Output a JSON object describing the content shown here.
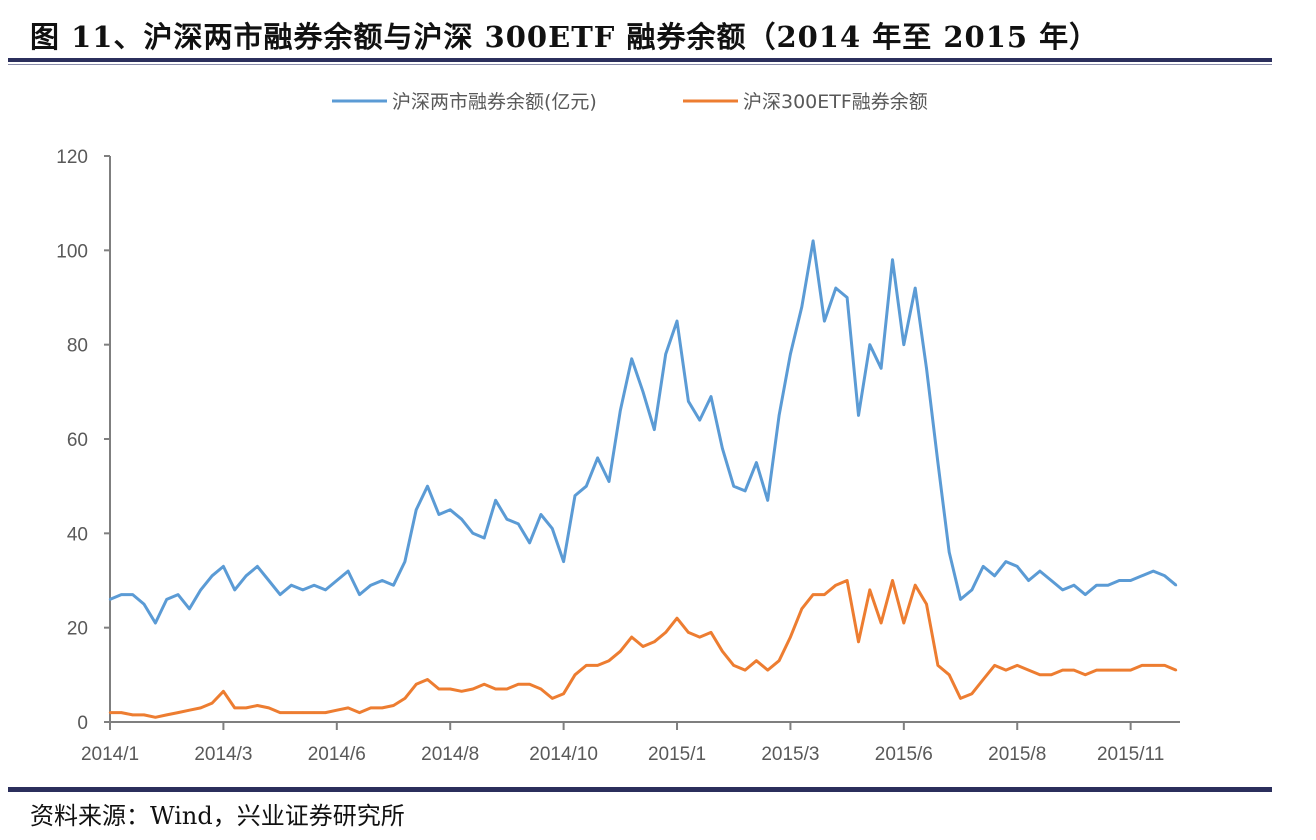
{
  "title": "图 11、沪深两市融券余额与沪深 300ETF 融券余额（2014 年至 2015 年）",
  "source": "资料来源：Wind，兴业证券研究所",
  "chart_data": {
    "type": "line",
    "title": "图 11、沪深两市融券余额与沪深 300ETF 融券余额（2014 年至 2015 年）",
    "xlabel": "",
    "ylabel": "",
    "ylim": [
      0,
      120
    ],
    "yticks": [
      "0",
      "20",
      "40",
      "60",
      "80",
      "100",
      "120"
    ],
    "grid": false,
    "legend_position": "top",
    "categories": [
      "2014/1",
      "",
      "",
      "",
      "",
      "",
      "",
      "",
      "",
      "",
      "2014/3",
      "",
      "",
      "",
      "",
      "",
      "",
      "",
      "",
      "",
      "2014/6",
      "",
      "",
      "",
      "",
      "",
      "",
      "",
      "",
      "",
      "2014/8",
      "",
      "",
      "",
      "",
      "",
      "",
      "",
      "",
      "",
      "2014/10",
      "",
      "",
      "",
      "",
      "",
      "",
      "",
      "",
      "",
      "2015/1",
      "",
      "",
      "",
      "",
      "",
      "",
      "",
      "",
      "",
      "2015/3",
      "",
      "",
      "",
      "",
      "",
      "",
      "",
      "",
      "",
      "2015/6",
      "",
      "",
      "",
      "",
      "",
      "",
      "",
      "",
      "",
      "2015/8",
      "",
      "",
      "",
      "",
      "",
      "",
      "",
      "",
      "",
      "2015/11",
      "",
      "",
      "",
      ""
    ],
    "series": [
      {
        "name": "沪深两市融券余额(亿元)",
        "color": "#5b9bd5",
        "values": [
          26,
          27,
          27,
          25,
          21,
          26,
          27,
          24,
          28,
          31,
          33,
          28,
          31,
          33,
          30,
          27,
          29,
          28,
          29,
          28,
          30,
          32,
          27,
          29,
          30,
          29,
          34,
          45,
          50,
          44,
          45,
          43,
          40,
          39,
          47,
          43,
          42,
          38,
          44,
          41,
          34,
          48,
          50,
          56,
          51,
          66,
          77,
          70,
          62,
          78,
          85,
          68,
          64,
          69,
          58,
          50,
          49,
          55,
          47,
          65,
          78,
          88,
          102,
          85,
          92,
          90,
          65,
          80,
          75,
          98,
          80,
          92,
          75,
          55,
          36,
          26,
          28,
          33,
          31,
          34,
          33,
          30,
          32,
          30,
          28,
          29,
          27,
          29,
          29,
          30,
          30,
          31,
          32,
          31,
          29
        ]
      },
      {
        "name": "沪深300ETF融券余额",
        "color": "#ed7d31",
        "values": [
          2,
          2,
          1.5,
          1.5,
          1,
          1.5,
          2,
          2.5,
          3,
          4,
          6.5,
          3,
          3,
          3.5,
          3,
          2,
          2,
          2,
          2,
          2,
          2.5,
          3,
          2,
          3,
          3,
          3.5,
          5,
          8,
          9,
          7,
          7,
          6.5,
          7,
          8,
          7,
          7,
          8,
          8,
          7,
          5,
          6,
          10,
          12,
          12,
          13,
          15,
          18,
          16,
          17,
          19,
          22,
          19,
          18,
          19,
          15,
          12,
          11,
          13,
          11,
          13,
          18,
          24,
          27,
          27,
          29,
          30,
          17,
          28,
          21,
          30,
          21,
          29,
          25,
          12,
          10,
          5,
          6,
          9,
          12,
          11,
          12,
          11,
          10,
          10,
          11,
          11,
          10,
          11,
          11,
          11,
          11,
          12,
          12,
          12,
          11
        ]
      }
    ]
  }
}
